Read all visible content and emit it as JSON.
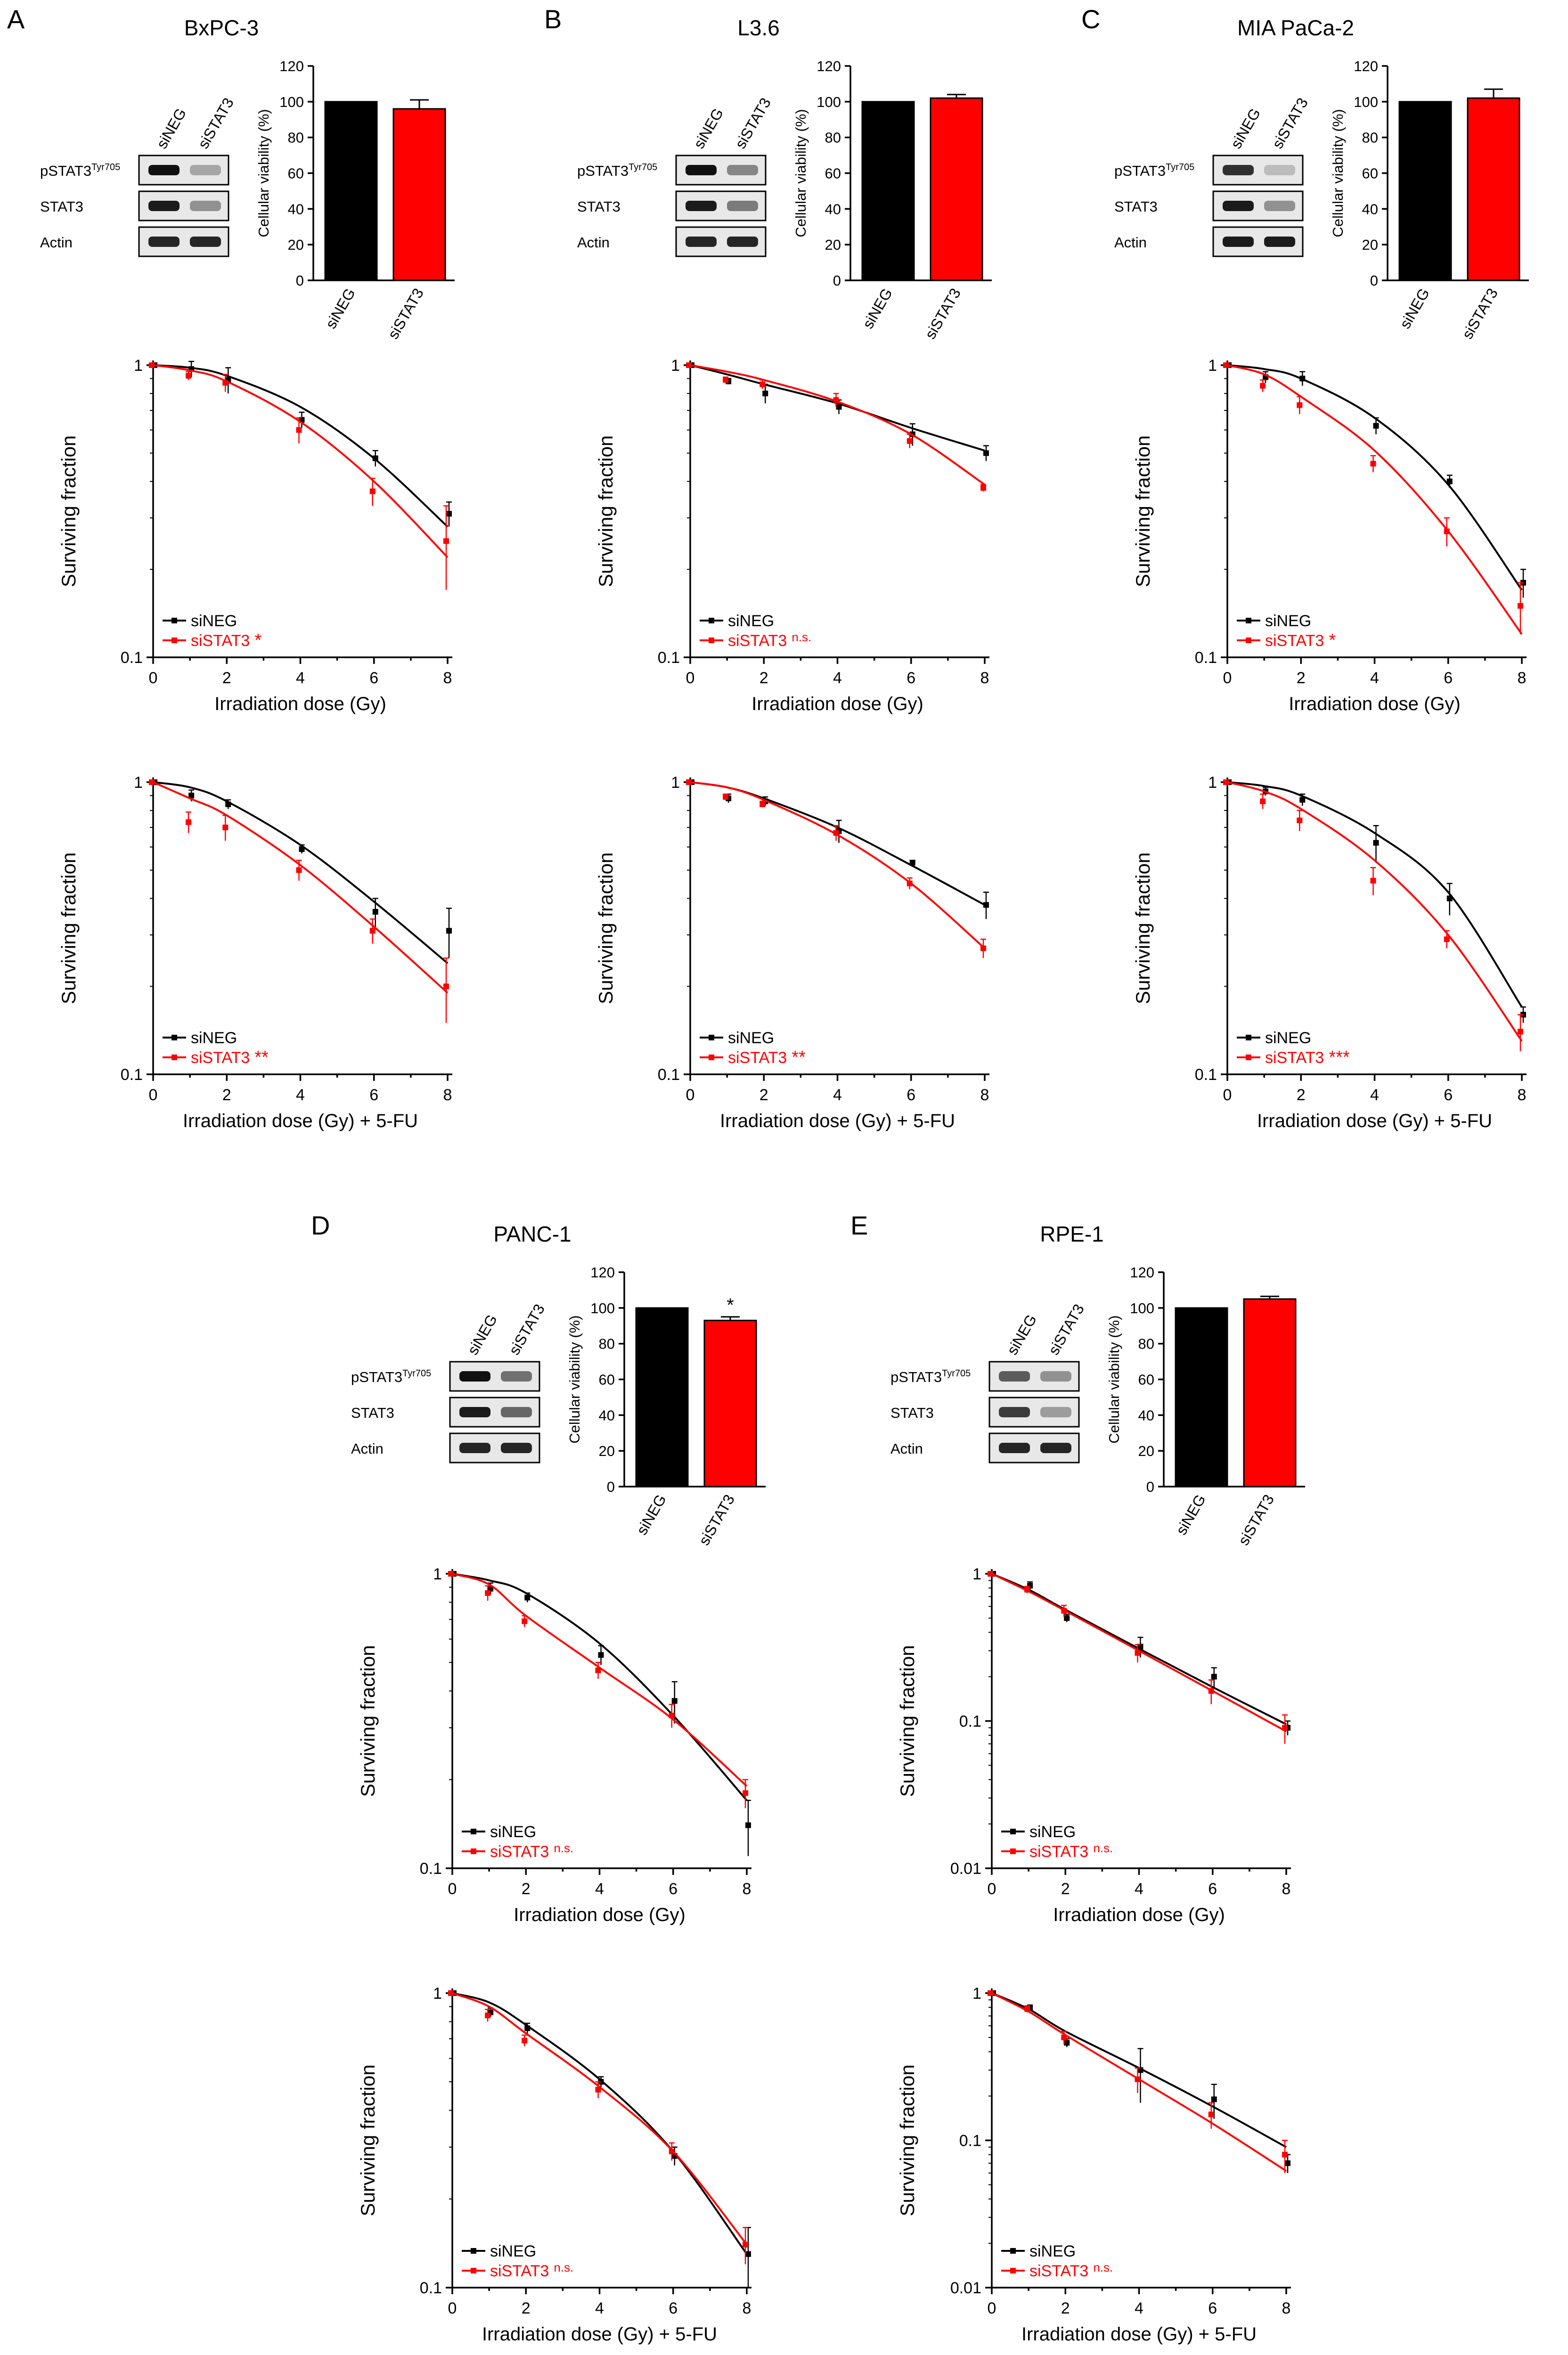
{
  "colors": {
    "siNEG": "#000000",
    "siSTAT3": "#ff0000"
  },
  "common": {
    "viability_ylabel": "Cellular viability (%)",
    "surviving_ylabel": "Surviving fraction",
    "xlabel_ir": "Irradiation dose (Gy)",
    "xlabel_5fu": "Irradiation dose (Gy) + 5-FU",
    "legend_neg": "siNEG",
    "legend_stat3": "siSTAT3",
    "lane_neg": "siNEG",
    "lane_stat3": "siSTAT3",
    "blot_pstat3": "pSTAT3",
    "blot_pstat3_sup": "Tyr705",
    "blot_stat3": "STAT3",
    "blot_actin": "Actin",
    "bar_cat_neg": "siNEG",
    "bar_cat_stat3": "siSTAT3"
  },
  "panels": [
    {
      "letter": "A",
      "cell_line": "BxPC-3"
    },
    {
      "letter": "B",
      "cell_line": "L3.6"
    },
    {
      "letter": "C",
      "cell_line": "MIA PaCa-2"
    },
    {
      "letter": "D",
      "cell_line": "PANC-1"
    },
    {
      "letter": "E",
      "cell_line": "RPE-1"
    }
  ],
  "chart_data": [
    {
      "id": "A-bar",
      "type": "bar",
      "title": "BxPC-3",
      "ylabel": "Cellular viability (%)",
      "categories": [
        "siNEG",
        "siSTAT3"
      ],
      "values": [
        100,
        96
      ],
      "errors": [
        0,
        5
      ],
      "ylim": [
        0,
        120
      ],
      "yticks": [
        "0",
        "20",
        "40",
        "60",
        "80",
        "100",
        "120"
      ],
      "significance": ""
    },
    {
      "id": "B-bar",
      "type": "bar",
      "title": "L3.6",
      "ylabel": "Cellular viability (%)",
      "categories": [
        "siNEG",
        "siSTAT3"
      ],
      "values": [
        100,
        102
      ],
      "errors": [
        0,
        2
      ],
      "ylim": [
        0,
        120
      ],
      "yticks": [
        "0",
        "20",
        "40",
        "60",
        "80",
        "100",
        "120"
      ],
      "significance": ""
    },
    {
      "id": "C-bar",
      "type": "bar",
      "title": "MIA PaCa-2",
      "ylabel": "Cellular viability (%)",
      "categories": [
        "siNEG",
        "siSTAT3"
      ],
      "values": [
        100,
        102
      ],
      "errors": [
        0,
        5
      ],
      "ylim": [
        0,
        120
      ],
      "yticks": [
        "0",
        "20",
        "40",
        "60",
        "80",
        "100",
        "120"
      ],
      "significance": ""
    },
    {
      "id": "D-bar",
      "type": "bar",
      "title": "PANC-1",
      "ylabel": "Cellular viability (%)",
      "categories": [
        "siNEG",
        "siSTAT3"
      ],
      "values": [
        100,
        93
      ],
      "errors": [
        0,
        2
      ],
      "ylim": [
        0,
        120
      ],
      "yticks": [
        "0",
        "20",
        "40",
        "60",
        "80",
        "100",
        "120"
      ],
      "significance": "*"
    },
    {
      "id": "E-bar",
      "type": "bar",
      "title": "RPE-1",
      "ylabel": "Cellular viability (%)",
      "categories": [
        "siNEG",
        "siSTAT3"
      ],
      "values": [
        100,
        105
      ],
      "errors": [
        0,
        1.5
      ],
      "ylim": [
        0,
        120
      ],
      "yticks": [
        "0",
        "20",
        "40",
        "60",
        "80",
        "100",
        "120"
      ],
      "significance": ""
    },
    {
      "id": "A-ir",
      "type": "line",
      "yscale": "log",
      "xlabel": "Irradiation dose (Gy)",
      "ylabel": "Surviving fraction",
      "ylim": [
        0.1,
        1
      ],
      "yticks": [
        "0.1",
        "1"
      ],
      "xticks": [
        "0",
        "2",
        "4",
        "6",
        "8"
      ],
      "significance": "*",
      "x": [
        0,
        1,
        2,
        4,
        6,
        8
      ],
      "series": [
        {
          "name": "siNEG",
          "y": [
            1,
            0.97,
            0.89,
            0.65,
            0.48,
            0.31
          ],
          "err": [
            0,
            0.06,
            0.09,
            0.04,
            0.03,
            0.03
          ],
          "fit": [
            1,
            0.98,
            0.92,
            0.72,
            0.48,
            0.28
          ]
        },
        {
          "name": "siSTAT3",
          "y": [
            1,
            0.92,
            0.87,
            0.6,
            0.37,
            0.25
          ],
          "err": [
            0,
            0.03,
            0.06,
            0.06,
            0.04,
            0.08
          ],
          "fit": [
            1,
            0.96,
            0.88,
            0.64,
            0.4,
            0.22
          ]
        }
      ]
    },
    {
      "id": "B-ir",
      "type": "line",
      "yscale": "log",
      "xlabel": "Irradiation dose (Gy)",
      "ylabel": "Surviving fraction",
      "ylim": [
        0.1,
        1
      ],
      "yticks": [
        "0.1",
        "1"
      ],
      "xticks": [
        "0",
        "2",
        "4",
        "6",
        "8"
      ],
      "significance": "n.s.",
      "x": [
        0,
        1,
        2,
        4,
        6,
        8
      ],
      "series": [
        {
          "name": "siNEG",
          "y": [
            1,
            0.88,
            0.8,
            0.72,
            0.58,
            0.5
          ],
          "err": [
            0,
            0.02,
            0.06,
            0.04,
            0.05,
            0.03
          ],
          "fit": [
            1,
            0.93,
            0.86,
            0.74,
            0.61,
            0.51
          ]
        },
        {
          "name": "siSTAT3",
          "y": [
            1,
            0.89,
            0.86,
            0.76,
            0.55,
            0.38
          ],
          "err": [
            0,
            0.02,
            0.03,
            0.04,
            0.03,
            0.01
          ],
          "fit": [
            1,
            0.95,
            0.89,
            0.75,
            0.58,
            0.39
          ]
        }
      ]
    },
    {
      "id": "C-ir",
      "type": "line",
      "yscale": "log",
      "xlabel": "Irradiation dose (Gy)",
      "ylabel": "Surviving fraction",
      "ylim": [
        0.1,
        1
      ],
      "yticks": [
        "0.1",
        "1"
      ],
      "xticks": [
        "0",
        "2",
        "4",
        "6",
        "8"
      ],
      "significance": "*",
      "x": [
        0,
        1,
        2,
        4,
        6,
        8
      ],
      "series": [
        {
          "name": "siNEG",
          "y": [
            1,
            0.91,
            0.9,
            0.62,
            0.4,
            0.18
          ],
          "err": [
            0,
            0.04,
            0.05,
            0.04,
            0.02,
            0.02
          ],
          "fit": [
            1,
            0.97,
            0.9,
            0.66,
            0.39,
            0.17
          ]
        },
        {
          "name": "siSTAT3",
          "y": [
            1,
            0.85,
            0.73,
            0.46,
            0.27,
            0.15
          ],
          "err": [
            0,
            0.04,
            0.05,
            0.03,
            0.03,
            0.03
          ],
          "fit": [
            1,
            0.93,
            0.78,
            0.51,
            0.27,
            0.12
          ]
        }
      ]
    },
    {
      "id": "A-5fu",
      "type": "line",
      "yscale": "log",
      "xlabel": "Irradiation dose (Gy) + 5-FU",
      "ylabel": "Surviving fraction",
      "ylim": [
        0.1,
        1
      ],
      "yticks": [
        "0.1",
        "1"
      ],
      "xticks": [
        "0",
        "2",
        "4",
        "6",
        "8"
      ],
      "significance": "**",
      "x": [
        0,
        1,
        2,
        4,
        6,
        8
      ],
      "series": [
        {
          "name": "siNEG",
          "y": [
            1,
            0.9,
            0.84,
            0.59,
            0.36,
            0.31
          ],
          "err": [
            0,
            0.04,
            0.03,
            0.02,
            0.04,
            0.06
          ],
          "fit": [
            1,
            0.96,
            0.86,
            0.61,
            0.39,
            0.24
          ]
        },
        {
          "name": "siSTAT3",
          "y": [
            1,
            0.73,
            0.7,
            0.5,
            0.31,
            0.2
          ],
          "err": [
            0,
            0.06,
            0.07,
            0.04,
            0.03,
            0.05
          ],
          "fit": [
            1,
            0.88,
            0.77,
            0.52,
            0.32,
            0.19
          ]
        }
      ]
    },
    {
      "id": "B-5fu",
      "type": "line",
      "yscale": "log",
      "xlabel": "Irradiation dose (Gy) + 5-FU",
      "ylabel": "Surviving fraction",
      "ylim": [
        0.1,
        1
      ],
      "yticks": [
        "0.1",
        "1"
      ],
      "xticks": [
        "0",
        "2",
        "4",
        "6",
        "8"
      ],
      "significance": "**",
      "x": [
        0,
        1,
        2,
        4,
        6,
        8
      ],
      "series": [
        {
          "name": "siNEG",
          "y": [
            1,
            0.88,
            0.86,
            0.68,
            0.53,
            0.38
          ],
          "err": [
            0,
            0.03,
            0.03,
            0.06,
            0.01,
            0.04
          ],
          "fit": [
            1,
            0.96,
            0.88,
            0.7,
            0.52,
            0.38
          ]
        },
        {
          "name": "siSTAT3",
          "y": [
            1,
            0.89,
            0.84,
            0.67,
            0.45,
            0.27
          ],
          "err": [
            0,
            0.02,
            0.02,
            0.04,
            0.02,
            0.02
          ],
          "fit": [
            1,
            0.96,
            0.87,
            0.66,
            0.45,
            0.27
          ]
        }
      ]
    },
    {
      "id": "C-5fu",
      "type": "line",
      "yscale": "log",
      "xlabel": "Irradiation dose (Gy) + 5-FU",
      "ylabel": "Surviving fraction",
      "ylim": [
        0.1,
        1
      ],
      "yticks": [
        "0.1",
        "1"
      ],
      "xticks": [
        "0",
        "2",
        "4",
        "6",
        "8"
      ],
      "significance": "***",
      "x": [
        0,
        1,
        2,
        4,
        6,
        8
      ],
      "series": [
        {
          "name": "siNEG",
          "y": [
            1,
            0.93,
            0.87,
            0.62,
            0.4,
            0.16
          ],
          "err": [
            0,
            0.03,
            0.04,
            0.09,
            0.05,
            0.01
          ],
          "fit": [
            1,
            0.97,
            0.9,
            0.67,
            0.42,
            0.17
          ]
        },
        {
          "name": "siSTAT3",
          "y": [
            1,
            0.86,
            0.74,
            0.46,
            0.29,
            0.14
          ],
          "err": [
            0,
            0.05,
            0.06,
            0.05,
            0.02,
            0.02
          ],
          "fit": [
            1,
            0.93,
            0.81,
            0.54,
            0.3,
            0.13
          ]
        }
      ]
    },
    {
      "id": "D-ir",
      "type": "line",
      "yscale": "log",
      "xlabel": "Irradiation dose (Gy)",
      "ylabel": "Surviving fraction",
      "ylim": [
        0.1,
        1
      ],
      "yticks": [
        "0.1",
        "1"
      ],
      "xticks": [
        "0",
        "2",
        "4",
        "6",
        "8"
      ],
      "significance": "n.s.",
      "x": [
        0,
        1,
        2,
        4,
        6,
        8
      ],
      "series": [
        {
          "name": "siNEG",
          "y": [
            1,
            0.89,
            0.83,
            0.53,
            0.37,
            0.14
          ],
          "err": [
            0,
            0.04,
            0.03,
            0.04,
            0.06,
            0.03
          ],
          "fit": [
            1,
            0.95,
            0.86,
            0.58,
            0.33,
            0.17
          ]
        },
        {
          "name": "siSTAT3",
          "y": [
            1,
            0.86,
            0.69,
            0.47,
            0.33,
            0.18
          ],
          "err": [
            0,
            0.05,
            0.03,
            0.03,
            0.03,
            0.02
          ],
          "fit": [
            1,
            0.92,
            0.72,
            0.48,
            0.32,
            0.19
          ]
        }
      ]
    },
    {
      "id": "E-ir",
      "type": "line",
      "yscale": "log",
      "xlabel": "Irradiation dose (Gy)",
      "ylabel": "Surviving fraction",
      "ylim": [
        0.01,
        1
      ],
      "yticks": [
        "0.01",
        "0.1",
        "1"
      ],
      "xticks": [
        "0",
        "2",
        "4",
        "6",
        "8"
      ],
      "significance": "n.s.",
      "x": [
        0,
        1,
        2,
        4,
        6,
        8
      ],
      "series": [
        {
          "name": "siNEG",
          "y": [
            1,
            0.83,
            0.5,
            0.32,
            0.2,
            0.09
          ],
          "err": [
            0,
            0.05,
            0.03,
            0.05,
            0.03,
            0.01
          ],
          "fit": [
            1,
            0.78,
            0.57,
            0.31,
            0.17,
            0.095
          ]
        },
        {
          "name": "siSTAT3",
          "y": [
            1,
            0.78,
            0.56,
            0.29,
            0.16,
            0.09
          ],
          "err": [
            0,
            0.04,
            0.05,
            0.04,
            0.03,
            0.02
          ],
          "fit": [
            1,
            0.76,
            0.56,
            0.3,
            0.16,
            0.085
          ]
        }
      ]
    },
    {
      "id": "D-5fu",
      "type": "line",
      "yscale": "log",
      "xlabel": "Irradiation dose (Gy) + 5-FU",
      "ylabel": "Surviving fraction",
      "ylim": [
        0.1,
        1
      ],
      "yticks": [
        "0.1",
        "1"
      ],
      "xticks": [
        "0",
        "2",
        "4",
        "6",
        "8"
      ],
      "significance": "n.s.",
      "x": [
        0,
        1,
        2,
        4,
        6,
        8
      ],
      "series": [
        {
          "name": "siNEG",
          "y": [
            1,
            0.86,
            0.76,
            0.5,
            0.28,
            0.13
          ],
          "err": [
            0,
            0.03,
            0.03,
            0.02,
            0.02,
            0.03
          ],
          "fit": [
            1,
            0.93,
            0.78,
            0.51,
            0.29,
            0.13
          ]
        },
        {
          "name": "siSTAT3",
          "y": [
            1,
            0.84,
            0.69,
            0.47,
            0.29,
            0.14
          ],
          "err": [
            0,
            0.04,
            0.03,
            0.03,
            0.02,
            0.02
          ],
          "fit": [
            1,
            0.9,
            0.73,
            0.48,
            0.29,
            0.14
          ]
        }
      ]
    },
    {
      "id": "E-5fu",
      "type": "line",
      "yscale": "log",
      "xlabel": "Irradiation dose (Gy) + 5-FU",
      "ylabel": "Surviving fraction",
      "ylim": [
        0.01,
        1
      ],
      "yticks": [
        "0.01",
        "0.1",
        "1"
      ],
      "xticks": [
        "0",
        "2",
        "4",
        "6",
        "8"
      ],
      "significance": "n.s.",
      "x": [
        0,
        1,
        2,
        4,
        6,
        8
      ],
      "series": [
        {
          "name": "siNEG",
          "y": [
            1,
            0.8,
            0.46,
            0.3,
            0.19,
            0.07
          ],
          "err": [
            0,
            0.03,
            0.03,
            0.12,
            0.05,
            0.01
          ],
          "fit": [
            1,
            0.78,
            0.55,
            0.31,
            0.17,
            0.09
          ]
        },
        {
          "name": "siSTAT3",
          "y": [
            1,
            0.78,
            0.5,
            0.26,
            0.15,
            0.08
          ],
          "err": [
            0,
            0.04,
            0.05,
            0.05,
            0.03,
            0.02
          ],
          "fit": [
            1,
            0.75,
            0.52,
            0.26,
            0.13,
            0.062
          ]
        }
      ]
    }
  ],
  "blots": [
    {
      "id": "A",
      "pstat3": [
        0.95,
        0.25
      ],
      "stat3": [
        0.9,
        0.35
      ],
      "actin": [
        0.85,
        0.85
      ]
    },
    {
      "id": "B",
      "pstat3": [
        0.95,
        0.4
      ],
      "stat3": [
        0.9,
        0.45
      ],
      "actin": [
        0.85,
        0.85
      ]
    },
    {
      "id": "C",
      "pstat3": [
        0.8,
        0.15
      ],
      "stat3": [
        0.9,
        0.35
      ],
      "actin": [
        0.9,
        0.9
      ]
    },
    {
      "id": "D",
      "pstat3": [
        0.95,
        0.5
      ],
      "stat3": [
        0.9,
        0.55
      ],
      "actin": [
        0.85,
        0.85
      ]
    },
    {
      "id": "E",
      "pstat3": [
        0.6,
        0.35
      ],
      "stat3": [
        0.75,
        0.3
      ],
      "actin": [
        0.85,
        0.85
      ]
    }
  ]
}
